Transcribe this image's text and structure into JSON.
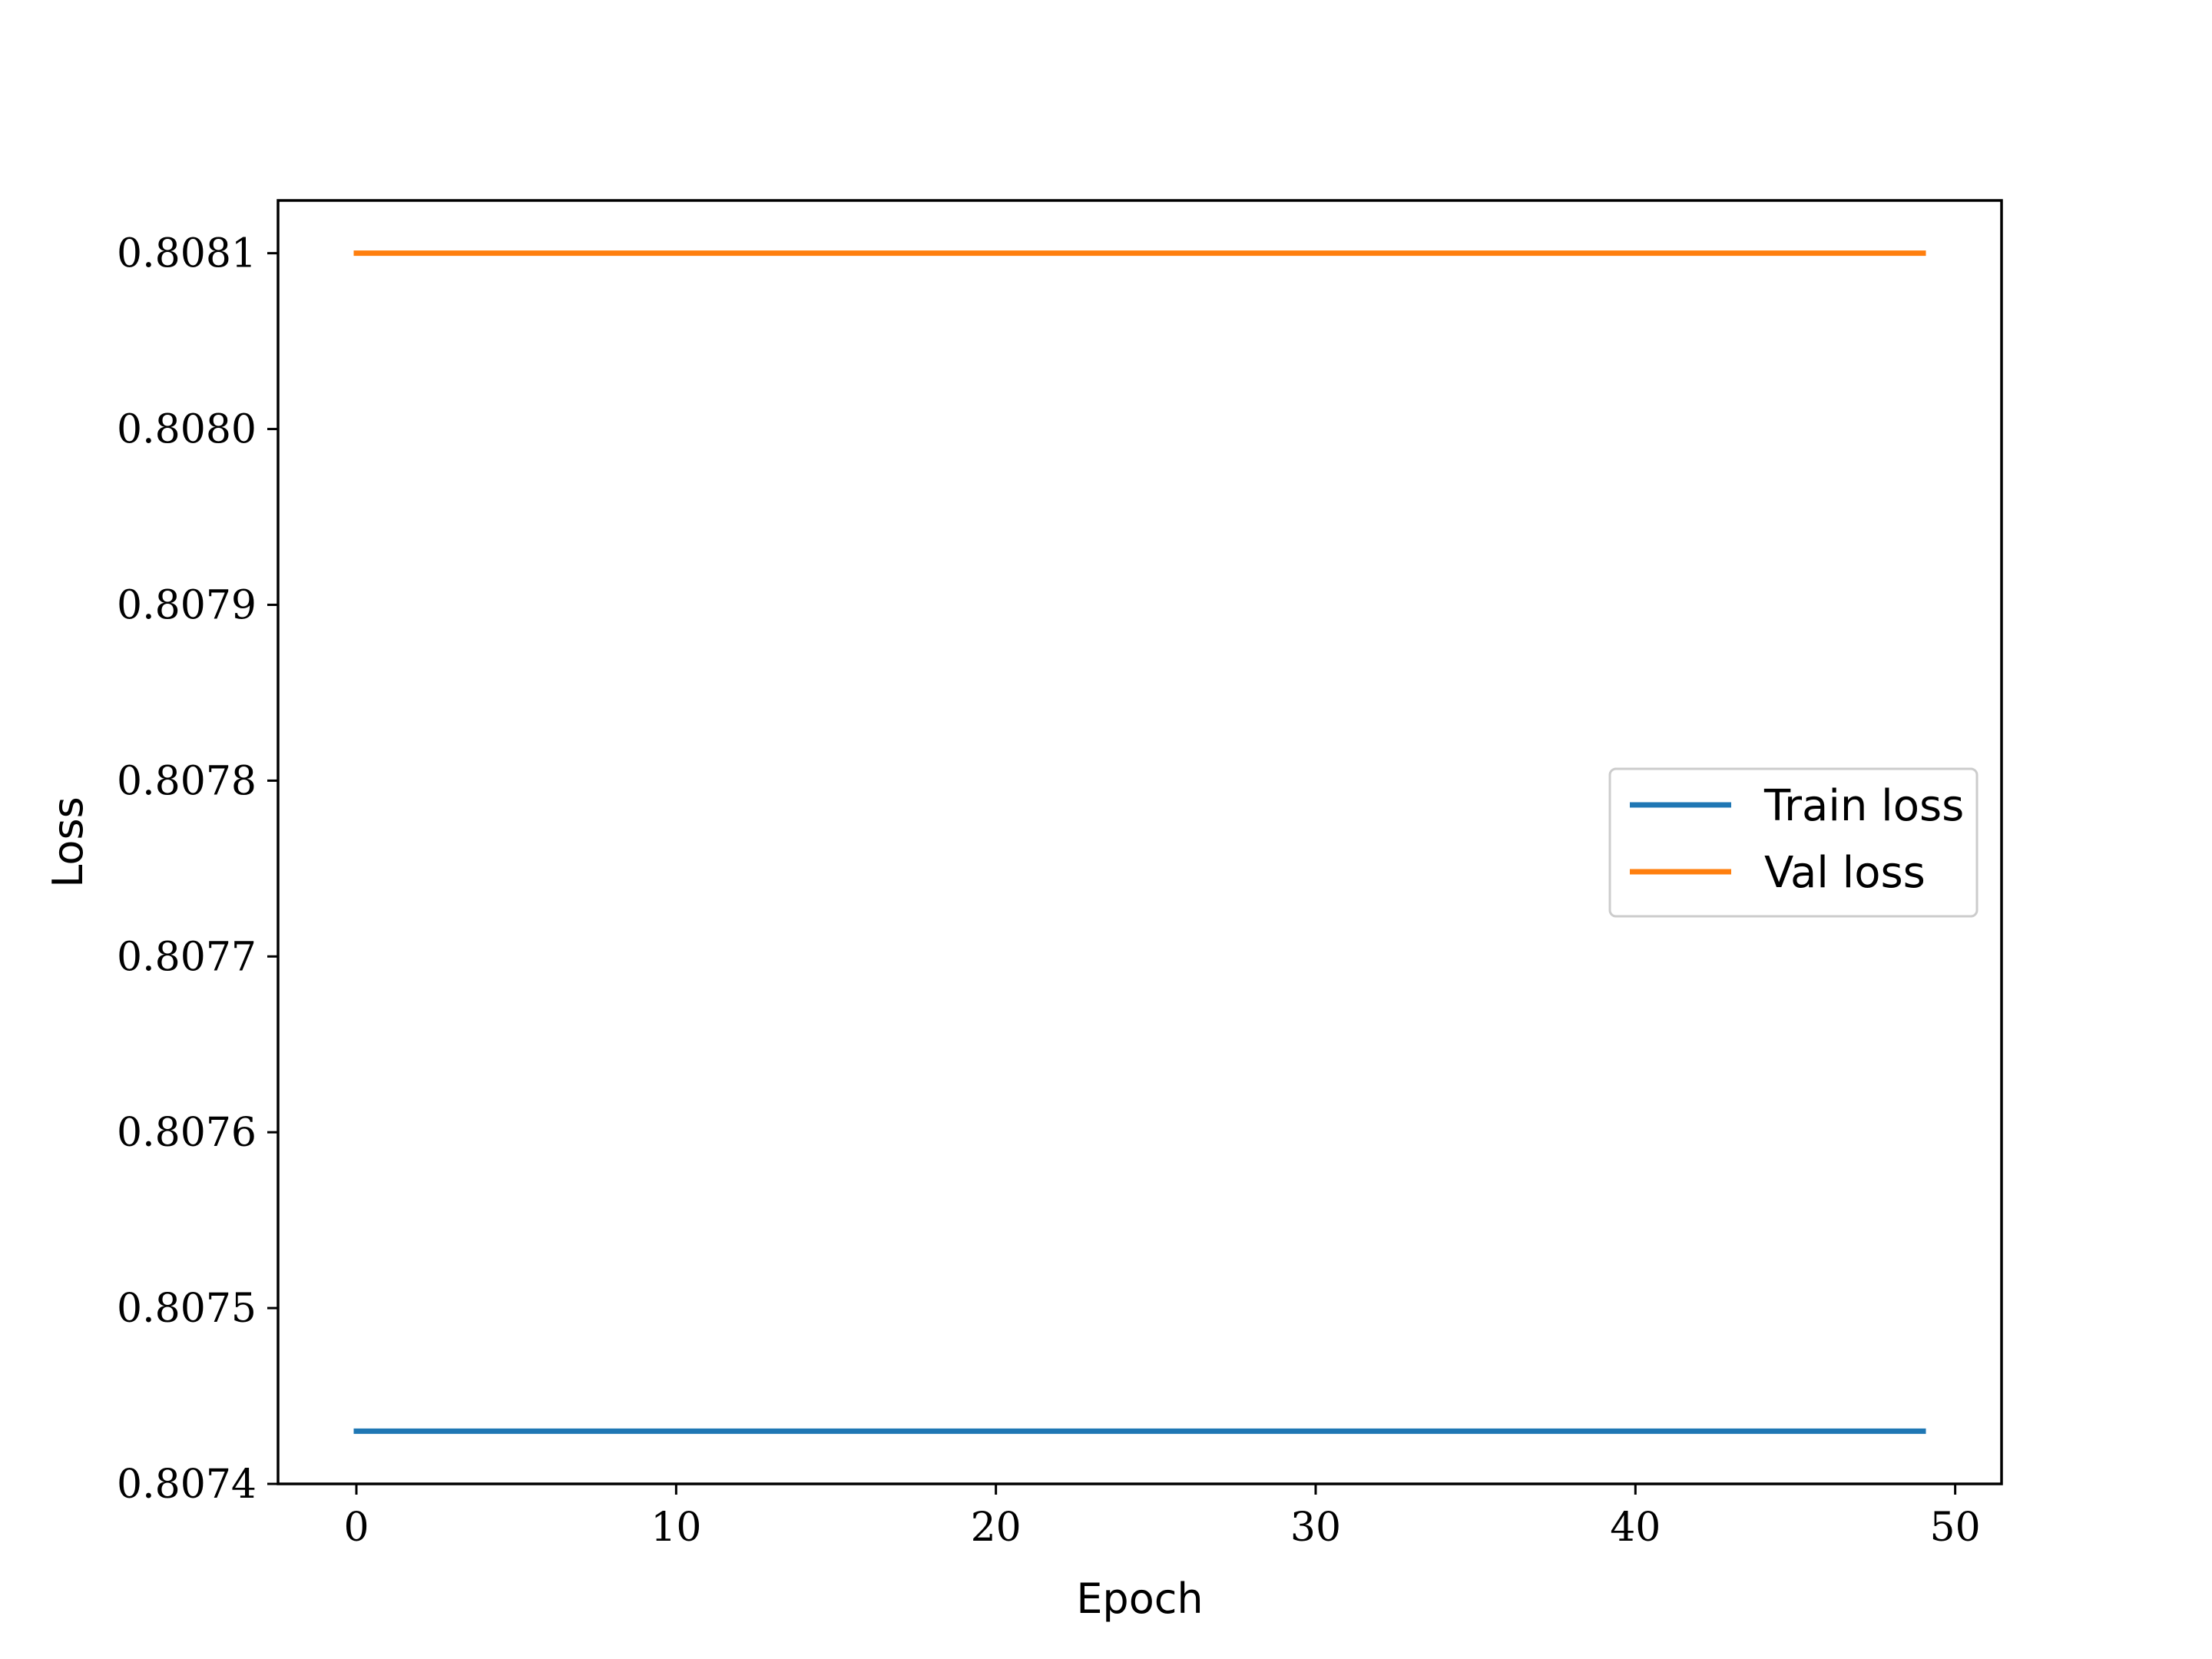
{
  "chart_data": {
    "type": "line",
    "title": "",
    "xlabel": "Epoch",
    "ylabel": "Loss",
    "xlim": [
      -2.45,
      51.45
    ],
    "ylim": [
      0.8074,
      0.80813
    ],
    "x_ticks": [
      0,
      10,
      20,
      30,
      40,
      50
    ],
    "x_tick_labels": [
      "0",
      "10",
      "20",
      "30",
      "40",
      "50"
    ],
    "y_ticks": [
      0.8074,
      0.8075,
      0.8076,
      0.8077,
      0.8078,
      0.8079,
      0.808,
      0.8081
    ],
    "y_tick_labels": [
      "0.8074",
      "0.8075",
      "0.8076",
      "0.8077",
      "0.8078",
      "0.8079",
      "0.8080",
      "0.8081"
    ],
    "grid": false,
    "legend_position": "center-right",
    "series": [
      {
        "name": "Train loss",
        "color": "#1f77b4",
        "x_start": 0,
        "x_end": 49,
        "value": 0.80743
      },
      {
        "name": "Val loss",
        "color": "#ff7f0e",
        "x_start": 0,
        "x_end": 49,
        "value": 0.8081
      }
    ]
  }
}
